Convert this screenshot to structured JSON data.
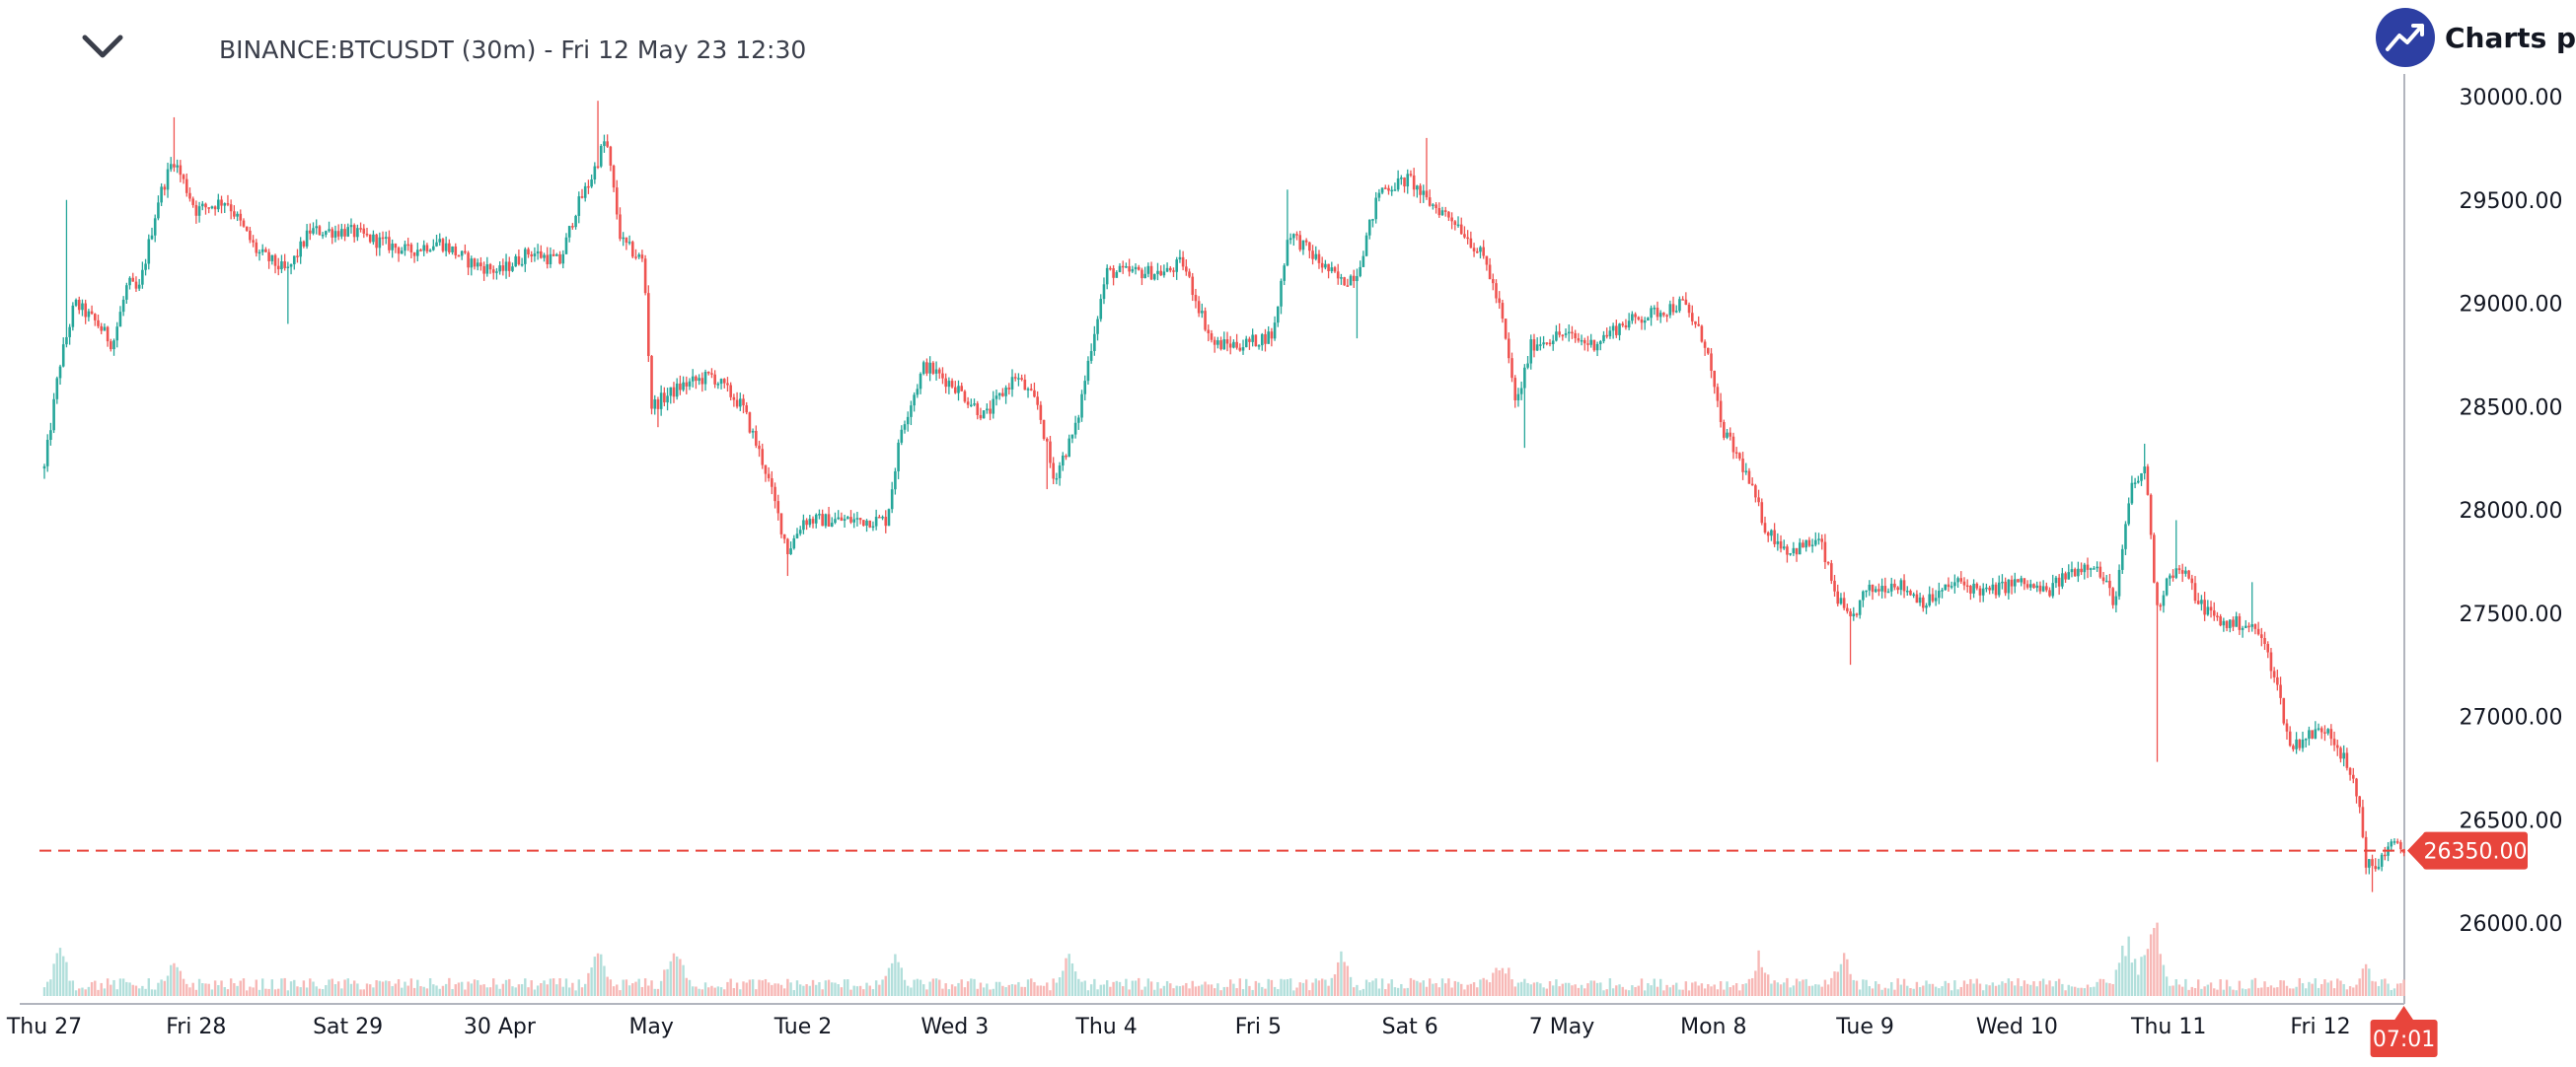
{
  "header": {
    "symbol": "BINANCE:BTCUSDT (30m) - Fri 12 May 23 12:30",
    "brand_name": "Charts p",
    "logo_icon": "trend-up-icon",
    "menu_icon": "chevron-down-icon"
  },
  "chart_data": {
    "type": "candlestick",
    "interval": "30m",
    "x_ticks": [
      "Thu 27",
      "Fri 28",
      "Sat 29",
      "30 Apr",
      "May",
      "Tue 2",
      "Wed 3",
      "Thu 4",
      "Fri 5",
      "Sat 6",
      "7 May",
      "Mon 8",
      "Tue 9",
      "Wed 10",
      "Thu 11",
      "Fri 12"
    ],
    "y_ticks": [
      "30000.00",
      "29500.00",
      "29000.00",
      "28500.00",
      "28000.00",
      "27500.00",
      "27000.00",
      "26500.00",
      "26000.00"
    ],
    "ylim": [
      25700,
      30250
    ],
    "last_price": 26350,
    "last_price_label": "26350.00",
    "countdown_label": "07:01",
    "close_path": [
      [
        0,
        28200
      ],
      [
        0.1,
        28700
      ],
      [
        0.2,
        29000
      ],
      [
        0.35,
        28900
      ],
      [
        0.45,
        28800
      ],
      [
        0.55,
        29100
      ],
      [
        0.62,
        29050
      ],
      [
        0.75,
        29500
      ],
      [
        0.85,
        29700
      ],
      [
        1.0,
        29450
      ],
      [
        1.2,
        29500
      ],
      [
        1.4,
        29250
      ],
      [
        1.6,
        29150
      ],
      [
        1.75,
        29350
      ],
      [
        2.0,
        29350
      ],
      [
        2.2,
        29300
      ],
      [
        2.4,
        29250
      ],
      [
        2.6,
        29300
      ],
      [
        2.8,
        29200
      ],
      [
        3.0,
        29150
      ],
      [
        3.2,
        29250
      ],
      [
        3.4,
        29200
      ],
      [
        3.5,
        29450
      ],
      [
        3.6,
        29600
      ],
      [
        3.7,
        29800
      ],
      [
        3.8,
        29300
      ],
      [
        3.95,
        29200
      ],
      [
        4.0,
        28500
      ],
      [
        4.2,
        28600
      ],
      [
        4.4,
        28650
      ],
      [
        4.6,
        28500
      ],
      [
        4.75,
        28200
      ],
      [
        4.9,
        27800
      ],
      [
        5.0,
        27950
      ],
      [
        5.2,
        27950
      ],
      [
        5.4,
        27950
      ],
      [
        5.55,
        27950
      ],
      [
        5.65,
        28400
      ],
      [
        5.8,
        28700
      ],
      [
        6.0,
        28600
      ],
      [
        6.2,
        28450
      ],
      [
        6.4,
        28650
      ],
      [
        6.55,
        28500
      ],
      [
        6.65,
        28150
      ],
      [
        6.8,
        28400
      ],
      [
        6.9,
        28800
      ],
      [
        7.0,
        29150
      ],
      [
        7.2,
        29150
      ],
      [
        7.4,
        29150
      ],
      [
        7.5,
        29200
      ],
      [
        7.6,
        29000
      ],
      [
        7.7,
        28800
      ],
      [
        7.9,
        28800
      ],
      [
        8.1,
        28850
      ],
      [
        8.2,
        29350
      ],
      [
        8.4,
        29200
      ],
      [
        8.55,
        29100
      ],
      [
        8.65,
        29150
      ],
      [
        8.8,
        29550
      ],
      [
        9.0,
        29600
      ],
      [
        9.1,
        29500
      ],
      [
        9.3,
        29400
      ],
      [
        9.5,
        29200
      ],
      [
        9.6,
        28950
      ],
      [
        9.7,
        28500
      ],
      [
        9.8,
        28800
      ],
      [
        10.0,
        28850
      ],
      [
        10.2,
        28800
      ],
      [
        10.4,
        28900
      ],
      [
        10.6,
        28950
      ],
      [
        10.8,
        29000
      ],
      [
        10.95,
        28800
      ],
      [
        11.05,
        28400
      ],
      [
        11.2,
        28200
      ],
      [
        11.35,
        27900
      ],
      [
        11.5,
        27800
      ],
      [
        11.7,
        27850
      ],
      [
        11.8,
        27600
      ],
      [
        11.9,
        27450
      ],
      [
        12.0,
        27600
      ],
      [
        12.2,
        27650
      ],
      [
        12.4,
        27550
      ],
      [
        12.6,
        27650
      ],
      [
        12.8,
        27600
      ],
      [
        13.0,
        27650
      ],
      [
        13.2,
        27600
      ],
      [
        13.35,
        27700
      ],
      [
        13.5,
        27750
      ],
      [
        13.65,
        27550
      ],
      [
        13.75,
        28100
      ],
      [
        13.85,
        28200
      ],
      [
        13.92,
        27500
      ],
      [
        14.0,
        27700
      ],
      [
        14.1,
        27700
      ],
      [
        14.2,
        27550
      ],
      [
        14.35,
        27450
      ],
      [
        14.5,
        27450
      ],
      [
        14.6,
        27400
      ],
      [
        14.7,
        27200
      ],
      [
        14.8,
        26850
      ],
      [
        14.9,
        26900
      ],
      [
        15.05,
        26950
      ],
      [
        15.15,
        26800
      ],
      [
        15.25,
        26600
      ],
      [
        15.3,
        26300
      ],
      [
        15.35,
        26250
      ],
      [
        15.45,
        26380
      ],
      [
        15.55,
        26350
      ]
    ],
    "spikes": [
      {
        "x": 0.0,
        "price": 28150
      },
      {
        "x": 0.15,
        "price": 29500
      },
      {
        "x": 0.85,
        "price": 29900
      },
      {
        "x": 1.6,
        "price": 28900
      },
      {
        "x": 3.65,
        "price": 29980
      },
      {
        "x": 4.05,
        "price": 28400
      },
      {
        "x": 4.9,
        "price": 27680
      },
      {
        "x": 6.6,
        "price": 28100
      },
      {
        "x": 8.2,
        "price": 29550
      },
      {
        "x": 8.65,
        "price": 28830
      },
      {
        "x": 9.1,
        "price": 29800
      },
      {
        "x": 9.75,
        "price": 28300
      },
      {
        "x": 11.8,
        "price": 27580
      },
      {
        "x": 11.9,
        "price": 27250
      },
      {
        "x": 13.85,
        "price": 28320
      },
      {
        "x": 13.92,
        "price": 26780
      },
      {
        "x": 14.05,
        "price": 27950
      },
      {
        "x": 14.55,
        "price": 27650
      },
      {
        "x": 15.35,
        "price": 26150
      }
    ],
    "volume_peaks": [
      {
        "x": 0.1,
        "v": 0.8
      },
      {
        "x": 0.85,
        "v": 0.6
      },
      {
        "x": 3.65,
        "v": 0.72
      },
      {
        "x": 4.15,
        "v": 1.0
      },
      {
        "x": 5.6,
        "v": 0.72
      },
      {
        "x": 6.75,
        "v": 0.68
      },
      {
        "x": 8.55,
        "v": 0.68
      },
      {
        "x": 9.6,
        "v": 0.72
      },
      {
        "x": 11.3,
        "v": 0.68
      },
      {
        "x": 11.85,
        "v": 0.8
      },
      {
        "x": 13.72,
        "v": 1.07
      },
      {
        "x": 13.9,
        "v": 1.77
      },
      {
        "x": 15.3,
        "v": 0.5
      }
    ],
    "colors": {
      "up": "#26a69a",
      "down": "#ef5350",
      "volume_up": "#b2dfdb",
      "volume_down": "#f7b8b6",
      "last_price": "#e8453c",
      "axis": "#b2b5be"
    }
  }
}
